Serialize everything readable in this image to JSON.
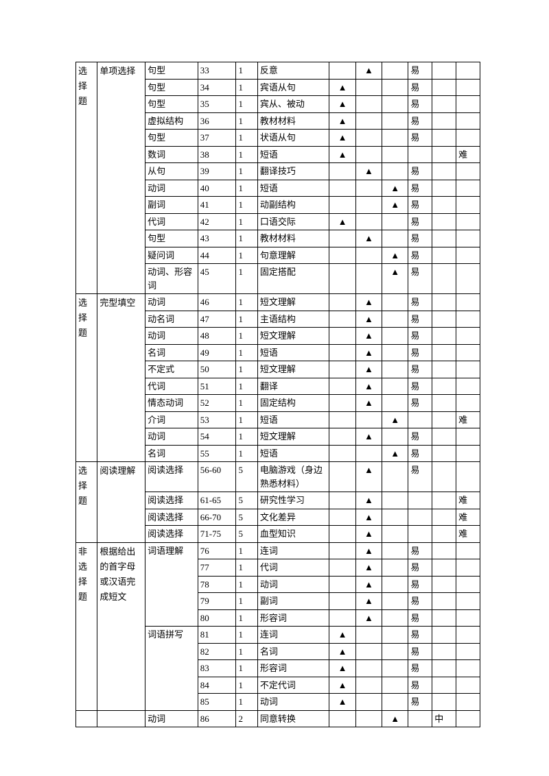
{
  "marks": {
    "triangle": "▲"
  },
  "labels": {
    "choice": "选择题",
    "nonchoice": "非选择题",
    "single": "单项选择",
    "cloze": "完型填空",
    "reading": "阅读理解",
    "passage": "根据给出的首字母或汉语完成短文",
    "vocab_comp": "词语理解",
    "vocab_spell": "词语拼写"
  },
  "rows": [
    {
      "id": "r33",
      "c3": "句型",
      "c4": "33",
      "c5": "1",
      "c6": "反意",
      "m": 2,
      "d": "易"
    },
    {
      "id": "r34",
      "c3": "句型",
      "c4": "34",
      "c5": "1",
      "c6": "宾语从句",
      "m": 1,
      "d": "易"
    },
    {
      "id": "r35",
      "c3": "句型",
      "c4": "35",
      "c5": "1",
      "c6": "宾从、被动",
      "m": 1,
      "d": "易"
    },
    {
      "id": "r36",
      "c3": "虚拟结构",
      "c4": "36",
      "c5": "1",
      "c6": "教材材料",
      "m": 1,
      "d": "易"
    },
    {
      "id": "r37",
      "c3": "句型",
      "c4": "37",
      "c5": "1",
      "c6": "状语从句",
      "m": 1,
      "d": "易"
    },
    {
      "id": "r38",
      "c3": "数词",
      "c4": "38",
      "c5": "1",
      "c6": "短语",
      "m": 1,
      "d3": "难"
    },
    {
      "id": "r39",
      "c3": "从句",
      "c4": "39",
      "c5": "1",
      "c6": "翻译技巧",
      "m": 2,
      "d": "易"
    },
    {
      "id": "r40",
      "c3": "动词",
      "c4": "40",
      "c5": "1",
      "c6": "短语",
      "m": 3,
      "d": "易"
    },
    {
      "id": "r41",
      "c3": "副词",
      "c4": "41",
      "c5": "1",
      "c6": "动副结构",
      "m": 3,
      "d": "易"
    },
    {
      "id": "r42",
      "c3": "代词",
      "c4": "42",
      "c5": "1",
      "c6": "口语交际",
      "m": 1,
      "d": "易"
    },
    {
      "id": "r43",
      "c3": "句型",
      "c4": "43",
      "c5": "1",
      "c6": "教材材料",
      "m": 2,
      "d": "易"
    },
    {
      "id": "r44",
      "c3": "疑问词",
      "c4": "44",
      "c5": "1",
      "c6": "句意理解",
      "m": 3,
      "d": "易"
    },
    {
      "id": "r45",
      "c3": "动词、形容词",
      "c4": "45",
      "c5": "1",
      "c6": "固定搭配",
      "m": 3,
      "d": "易"
    },
    {
      "id": "r46",
      "c3": "动词",
      "c4": "46",
      "c5": "1",
      "c6": "短文理解",
      "m": 2,
      "d": "易"
    },
    {
      "id": "r47",
      "c3": "动名词",
      "c4": "47",
      "c5": "1",
      "c6": "主语结构",
      "m": 2,
      "d": "易"
    },
    {
      "id": "r48",
      "c3": "动词",
      "c4": "48",
      "c5": "1",
      "c6": "短文理解",
      "m": 2,
      "d": "易"
    },
    {
      "id": "r49",
      "c3": "名词",
      "c4": "49",
      "c5": "1",
      "c6": "短语",
      "m": 2,
      "d": "易"
    },
    {
      "id": "r50",
      "c3": "不定式",
      "c4": "50",
      "c5": "1",
      "c6": "短文理解",
      "m": 2,
      "d": "易"
    },
    {
      "id": "r51",
      "c3": "代词",
      "c4": "51",
      "c5": "1",
      "c6": "翻译",
      "m": 2,
      "d": "易"
    },
    {
      "id": "r52",
      "c3": "情态动词",
      "c4": "52",
      "c5": "1",
      "c6": "固定结构",
      "m": 2,
      "d": "易"
    },
    {
      "id": "r53",
      "c3": "介词",
      "c4": "53",
      "c5": "1",
      "c6": "短语",
      "m": 3,
      "d3": "难"
    },
    {
      "id": "r54",
      "c3": "动词",
      "c4": "54",
      "c5": "1",
      "c6": "短文理解",
      "m": 2,
      "d": "易"
    },
    {
      "id": "r55",
      "c3": "名词",
      "c4": "55",
      "c5": "1",
      "c6": "短语",
      "m": 3,
      "d": "易"
    },
    {
      "id": "r56",
      "c3": "阅读选择",
      "c4": "56-60",
      "c5": "5",
      "c6": "电脑游戏（身边熟悉材料）",
      "m": 2,
      "d": "易"
    },
    {
      "id": "r61",
      "c3": "阅读选择",
      "c4": "61-65",
      "c5": "5",
      "c6": "研究性学习",
      "m": 2,
      "d3": "难"
    },
    {
      "id": "r66",
      "c3": "阅读选择",
      "c4": "66-70",
      "c5": "5",
      "c6": "文化差异",
      "m": 2,
      "d3": "难"
    },
    {
      "id": "r71",
      "c3": "阅读选择",
      "c4": "71-75",
      "c5": "5",
      "c6": "血型知识",
      "m": 2,
      "d3": "难"
    },
    {
      "id": "r76",
      "c3": "",
      "c4": "76",
      "c5": "1",
      "c6": "连词",
      "m": 2,
      "d": "易"
    },
    {
      "id": "r77",
      "c3": "",
      "c4": "77",
      "c5": "1",
      "c6": "代词",
      "m": 2,
      "d": "易"
    },
    {
      "id": "r78",
      "c3": "",
      "c4": "78",
      "c5": "1",
      "c6": "动词",
      "m": 2,
      "d": "易"
    },
    {
      "id": "r79",
      "c3": "",
      "c4": "79",
      "c5": "1",
      "c6": "副词",
      "m": 2,
      "d": "易"
    },
    {
      "id": "r80",
      "c3": "",
      "c4": "80",
      "c5": "1",
      "c6": "形容词",
      "m": 2,
      "d": "易"
    },
    {
      "id": "r81",
      "c3": "",
      "c4": "81",
      "c5": "1",
      "c6": "连词",
      "m": 1,
      "d": "易"
    },
    {
      "id": "r82",
      "c3": "",
      "c4": "82",
      "c5": "1",
      "c6": "名词",
      "m": 1,
      "d": "易"
    },
    {
      "id": "r83",
      "c3": "",
      "c4": "83",
      "c5": "1",
      "c6": "形容词",
      "m": 1,
      "d": "易"
    },
    {
      "id": "r84",
      "c3": "",
      "c4": "84",
      "c5": "1",
      "c6": "不定代词",
      "m": 1,
      "d": "易"
    },
    {
      "id": "r85",
      "c3": "",
      "c4": "85",
      "c5": "1",
      "c6": "动词",
      "m": 1,
      "d": "易"
    },
    {
      "id": "r86",
      "c3": "动词",
      "c4": "86",
      "c5": "2",
      "c6": "同意转换",
      "m": 3,
      "d2": "中"
    }
  ]
}
